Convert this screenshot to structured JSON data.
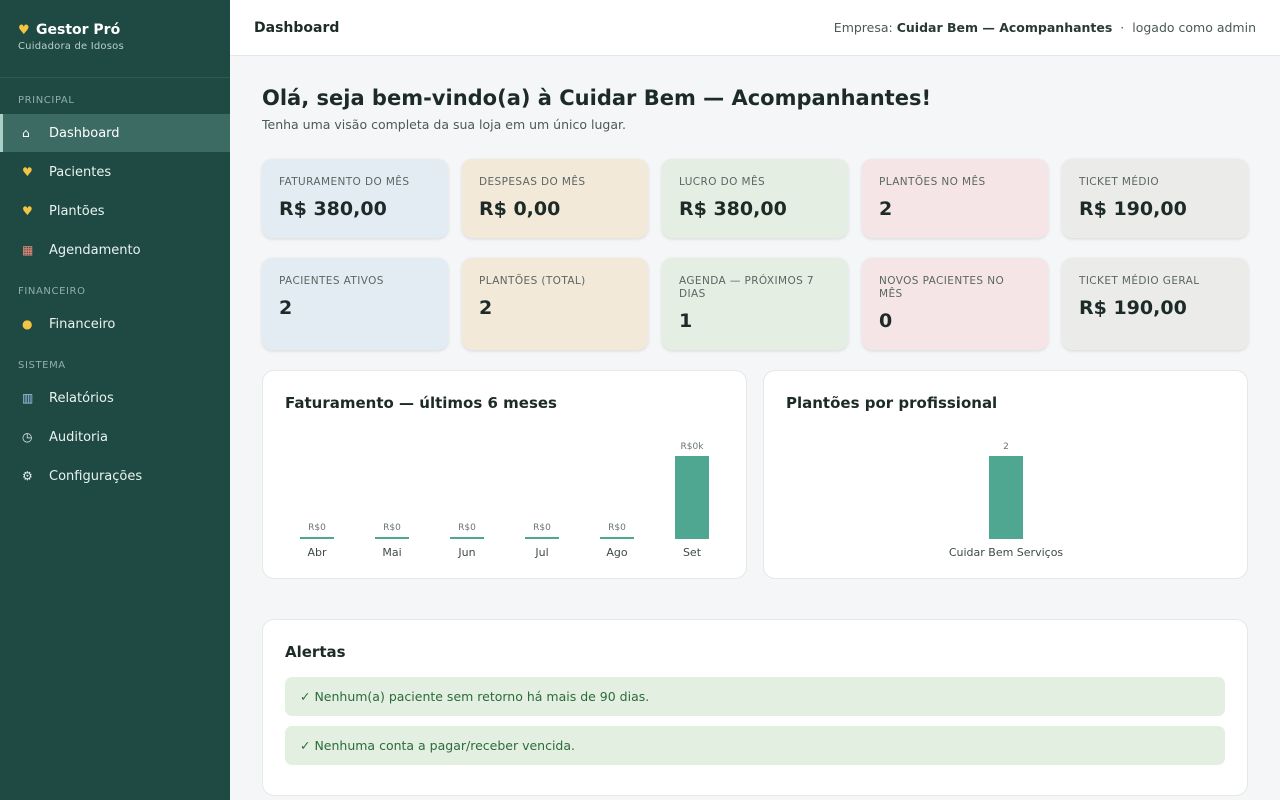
{
  "sidebar": {
    "brand": "Gestor Pró",
    "brand_icon": "heart-icon",
    "subtitle": "Cuidadora de Idosos",
    "sections": {
      "principal": "PRINCIPAL",
      "financeiro": "FINANCEIRO",
      "sistema": "SISTEMA"
    },
    "items": [
      {
        "label": "Dashboard",
        "icon": "home-icon",
        "active": true
      },
      {
        "label": "Pacientes",
        "icon": "heart-icon"
      },
      {
        "label": "Plantões",
        "icon": "heart-icon"
      },
      {
        "label": "Agendamento",
        "icon": "calendar-icon"
      },
      {
        "label": "Financeiro",
        "icon": "money-bag-icon"
      },
      {
        "label": "Relatórios",
        "icon": "bar-chart-icon"
      },
      {
        "label": "Auditoria",
        "icon": "clock-icon"
      },
      {
        "label": "Configurações",
        "icon": "gear-icon"
      }
    ]
  },
  "topbar": {
    "title": "Dashboard",
    "company_prefix": "Empresa:",
    "company": "Cuidar Bem — Acompanhantes",
    "separator": "·",
    "user": "logado como admin"
  },
  "welcome": {
    "title": "Olá, seja bem-vindo(a) à Cuidar Bem — Acompanhantes!",
    "subtitle": "Tenha uma visão completa da sua loja em um único lugar."
  },
  "cards": [
    {
      "label": "FATURAMENTO DO MÊS",
      "value": "R$ 380,00"
    },
    {
      "label": "DESPESAS DO MÊS",
      "value": "R$ 0,00"
    },
    {
      "label": "LUCRO DO MÊS",
      "value": "R$ 380,00"
    },
    {
      "label": "PLANTÕES NO MÊS",
      "value": "2"
    },
    {
      "label": "TICKET MÉDIO",
      "value": "R$ 190,00"
    },
    {
      "label": "PACIENTES ATIVOS",
      "value": "2"
    },
    {
      "label": "PLANTÕES (TOTAL)",
      "value": "2"
    },
    {
      "label": "AGENDA — PRÓXIMOS 7 DIAS",
      "value": "1"
    },
    {
      "label": "NOVOS PACIENTES NO MÊS",
      "value": "0"
    },
    {
      "label": "TICKET MÉDIO GERAL",
      "value": "R$ 190,00"
    }
  ],
  "colors": {
    "sidebar_bg": "#1f4a44",
    "bar": "#4fa792",
    "card_blue": "#e4ecf3",
    "card_sand": "#f2e9d8",
    "card_green": "#e4eee2",
    "card_pink": "#f5e5e7",
    "card_grey": "#ebebe9",
    "alert_bg": "#e2efe1"
  },
  "chart_data": [
    {
      "type": "bar",
      "title": "Faturamento — últimos 6 meses",
      "categories": [
        "Abr",
        "Mai",
        "Jun",
        "Jul",
        "Ago",
        "Set"
      ],
      "values": [
        0,
        0,
        0,
        0,
        0,
        380
      ],
      "data_labels": [
        "R$0",
        "R$0",
        "R$0",
        "R$0",
        "R$0",
        "R$0k"
      ]
    },
    {
      "type": "bar",
      "title": "Plantões por profissional",
      "categories": [
        "Cuidar Bem Serviços"
      ],
      "values": [
        2
      ],
      "data_labels": [
        "2"
      ]
    }
  ],
  "alerts": {
    "title": "Alertas",
    "items": [
      "✓ Nenhum(a) paciente sem retorno há mais de 90 dias.",
      "✓ Nenhuma conta a pagar/receber vencida."
    ]
  }
}
